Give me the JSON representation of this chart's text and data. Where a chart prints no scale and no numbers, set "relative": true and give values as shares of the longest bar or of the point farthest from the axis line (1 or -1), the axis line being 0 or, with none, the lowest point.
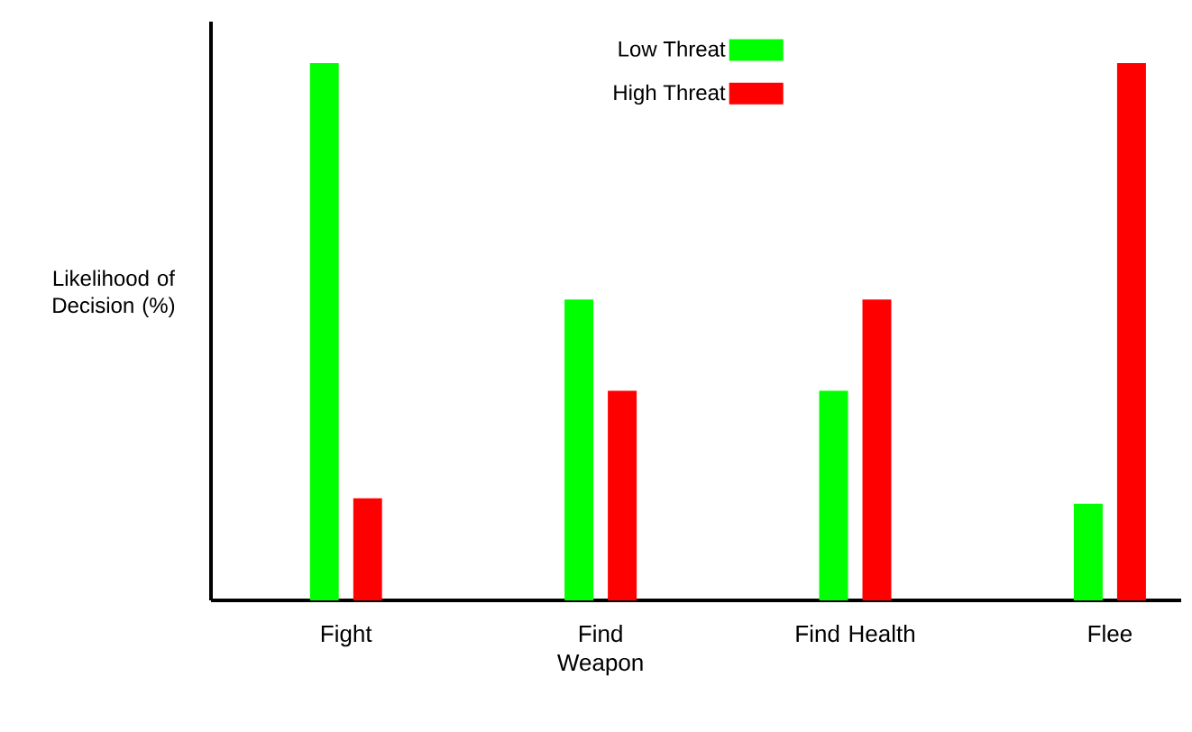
{
  "chart_data": {
    "type": "bar",
    "relative": true,
    "ylabel": "Likelihood of Decision (%)",
    "categories": [
      "Fight",
      "Find Weapon",
      "Find Health",
      "Flee"
    ],
    "series": [
      {
        "name": "Low Threat",
        "color": "#00ff00",
        "values": [
          1.0,
          0.56,
          0.39,
          0.18
        ]
      },
      {
        "name": "High Threat",
        "color": "#ff0000",
        "values": [
          0.19,
          0.39,
          0.56,
          1.0
        ]
      }
    ],
    "legend": "top",
    "grid": false
  }
}
